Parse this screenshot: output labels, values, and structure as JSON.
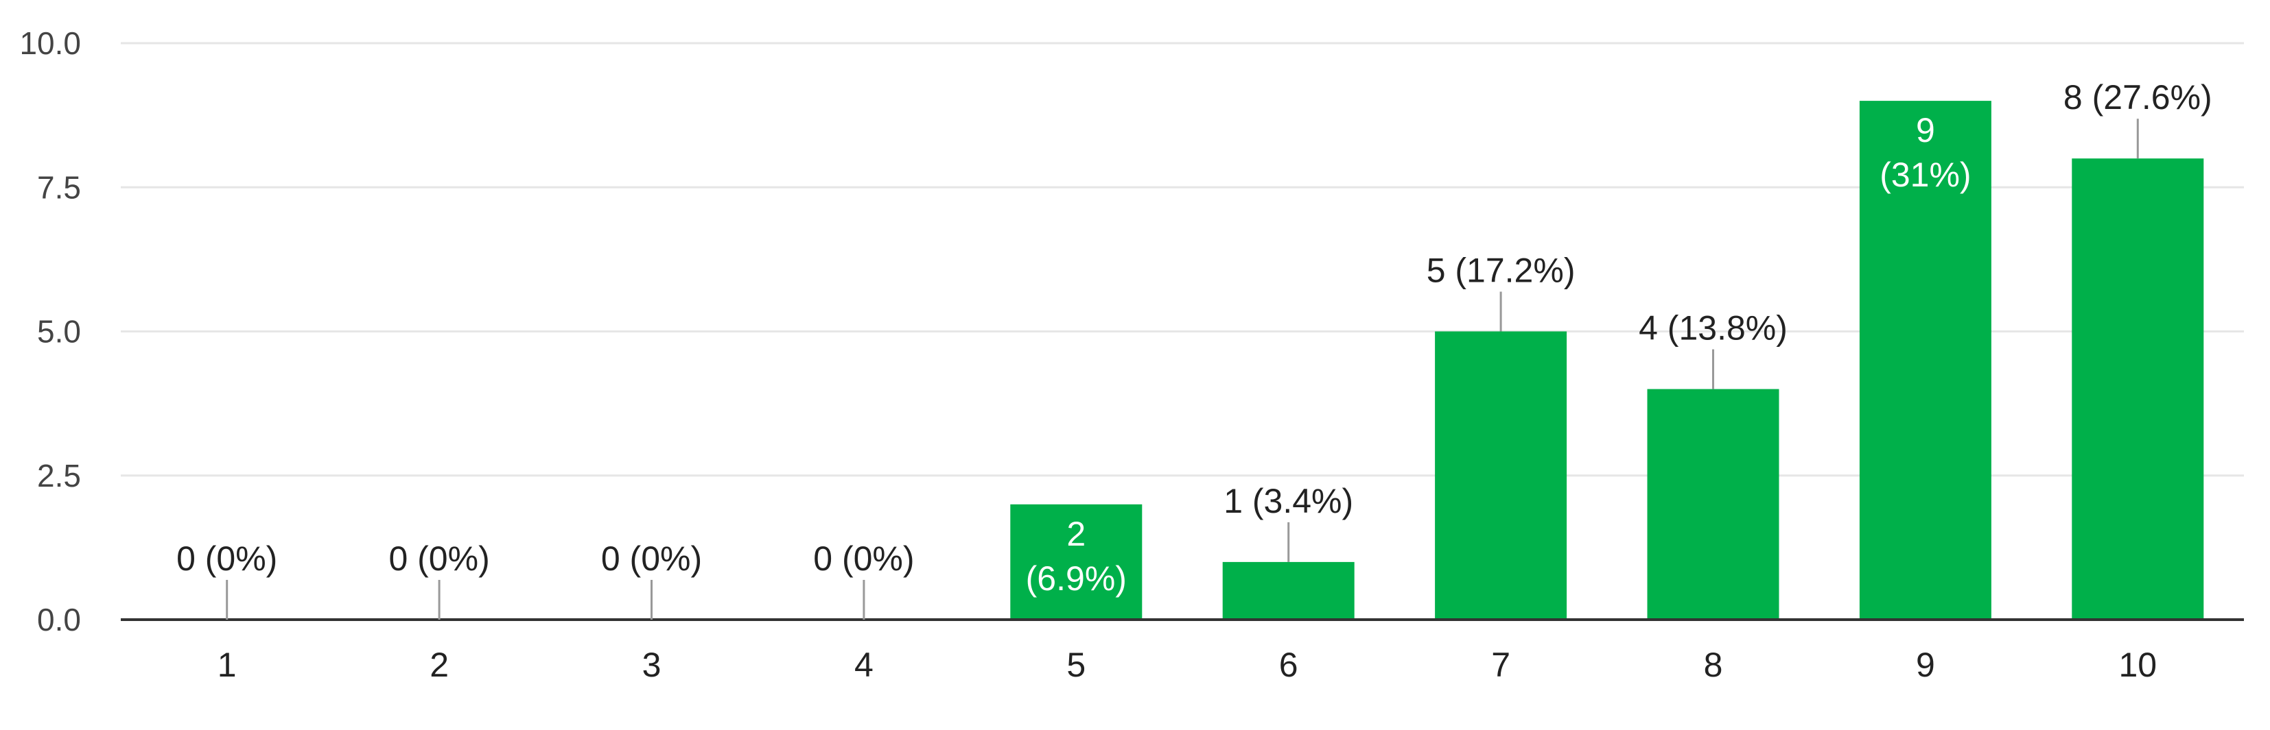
{
  "chart_data": {
    "type": "bar",
    "categories": [
      "1",
      "2",
      "3",
      "4",
      "5",
      "6",
      "7",
      "8",
      "9",
      "10"
    ],
    "values": [
      0,
      0,
      0,
      0,
      2,
      1,
      5,
      4,
      9,
      8
    ],
    "data_labels": [
      "0 (0%)",
      "0 (0%)",
      "0 (0%)",
      "0 (0%)",
      "2 (6.9%)",
      "1 (3.4%)",
      "5 (17.2%)",
      "4 (13.8%)",
      "9 (31%)",
      "8 (27.6%)"
    ],
    "label_inside": [
      false,
      false,
      false,
      false,
      true,
      false,
      false,
      false,
      true,
      false
    ],
    "title": "",
    "xlabel": "",
    "ylabel": "",
    "ylim": [
      0,
      10
    ],
    "yticks": [
      "0.0",
      "2.5",
      "5.0",
      "7.5",
      "10.0"
    ],
    "grid": true,
    "bar_color": "#00b04a"
  }
}
